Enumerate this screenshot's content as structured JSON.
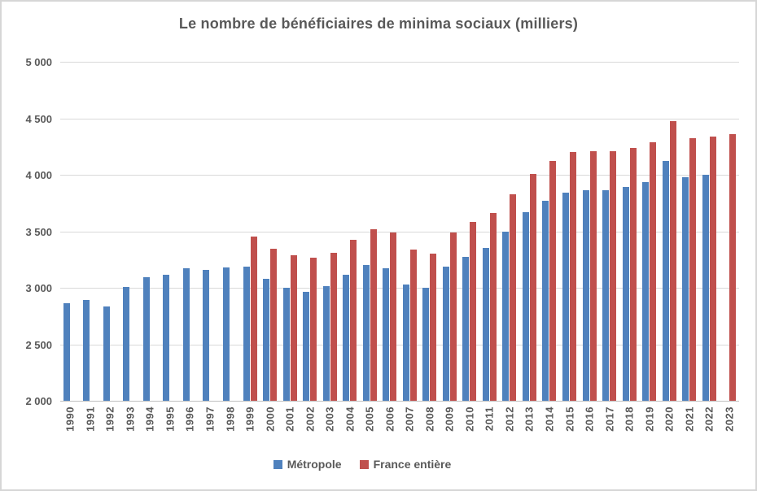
{
  "title": "Le nombre de bénéficiaires de minima sociaux (milliers)",
  "colors": {
    "metropole": "#4F81BD",
    "france_entiere": "#C0504D",
    "text": "#595959",
    "gridline": "#D9D9D9",
    "axis_line": "#BFBFBF"
  },
  "chart_data": {
    "type": "bar",
    "title": "Le nombre de bénéficiaires de minima sociaux (milliers)",
    "xlabel": "",
    "ylabel": "",
    "ylim": [
      2000,
      5000
    ],
    "ytick_step": 500,
    "yticks": [
      {
        "value": 2000,
        "label": "2 000"
      },
      {
        "value": 2500,
        "label": "2 500"
      },
      {
        "value": 3000,
        "label": "3 000"
      },
      {
        "value": 3500,
        "label": "3 500"
      },
      {
        "value": 4000,
        "label": "4 000"
      },
      {
        "value": 4500,
        "label": "4 500"
      },
      {
        "value": 5000,
        "label": "5 000"
      }
    ],
    "grid": true,
    "legend_position": "bottom",
    "categories": [
      1990,
      1991,
      1992,
      1993,
      1994,
      1995,
      1996,
      1997,
      1998,
      1999,
      2000,
      2001,
      2002,
      2003,
      2004,
      2005,
      2006,
      2007,
      2008,
      2009,
      2010,
      2011,
      2012,
      2013,
      2014,
      2015,
      2016,
      2017,
      2018,
      2019,
      2020,
      2021,
      2022,
      2023
    ],
    "series": [
      {
        "name": "Métropole",
        "key": "metropole",
        "color": "#4F81BD",
        "values": [
          2865,
          2890,
          2835,
          3005,
          3095,
          3115,
          3170,
          3155,
          3180,
          3190,
          3080,
          3000,
          2965,
          3015,
          3115,
          3200,
          3175,
          3030,
          3000,
          3190,
          3270,
          3355,
          3500,
          3670,
          3770,
          3845,
          3860,
          3865,
          3895,
          3935,
          4120,
          3975,
          4000,
          null
        ]
      },
      {
        "name": "France entière",
        "key": "france-entiere",
        "color": "#C0504D",
        "values": [
          null,
          null,
          null,
          null,
          null,
          null,
          null,
          null,
          null,
          3455,
          3345,
          3285,
          3265,
          3310,
          3425,
          3515,
          3490,
          3340,
          3300,
          3490,
          3580,
          3665,
          3825,
          4010,
          4125,
          4205,
          4210,
          4210,
          4235,
          4290,
          4475,
          4325,
          4335,
          4360
        ]
      }
    ]
  }
}
